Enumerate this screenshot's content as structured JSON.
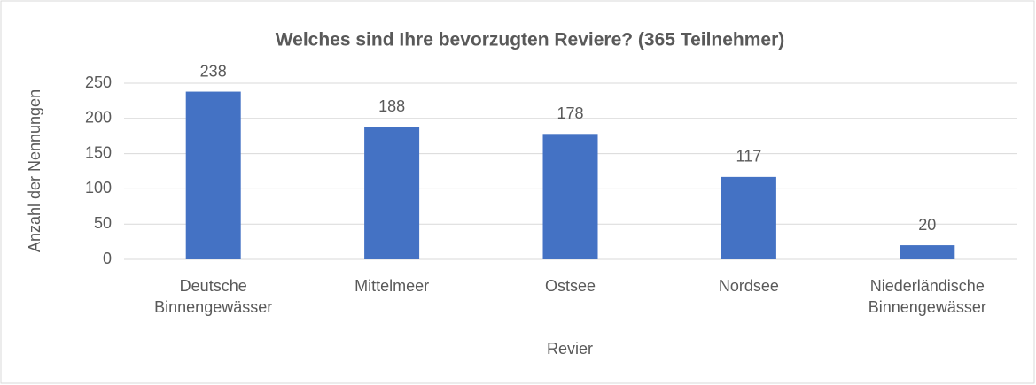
{
  "chart_data": {
    "type": "bar",
    "title": "Welches sind Ihre bevorzugten Reviere? (365 Teilnehmer)",
    "x_label": "Revier",
    "y_label": "Anzahl der Nennungen",
    "categories": [
      "Deutsche Binnengewässer",
      "Mittelmeer",
      "Ostsee",
      "Nordsee",
      "Niederländische Binnengewässer"
    ],
    "values": [
      238,
      188,
      178,
      117,
      20
    ],
    "color": "#4472c4",
    "ylim": [
      0,
      250
    ],
    "yticks": [
      0,
      50,
      100,
      150,
      200,
      250
    ],
    "grid": true
  }
}
